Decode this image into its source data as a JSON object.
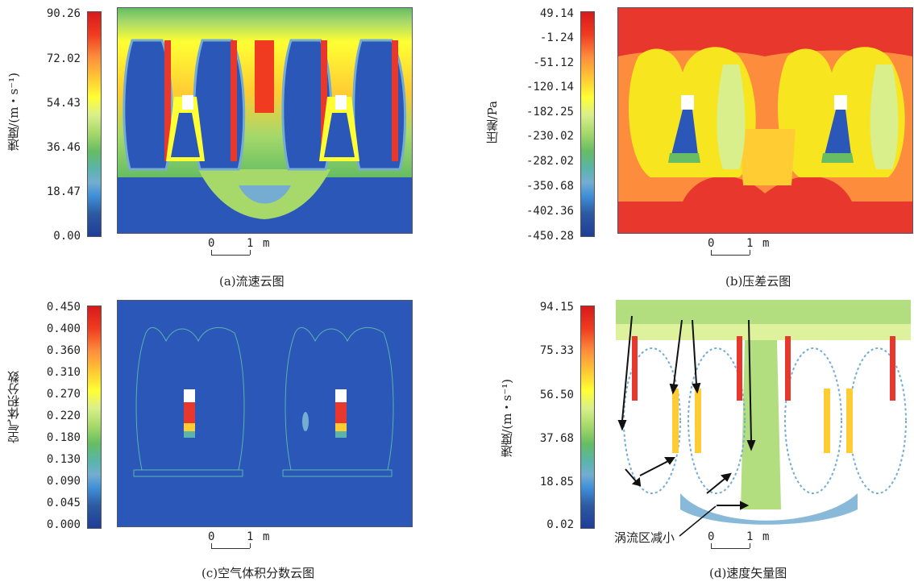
{
  "panels": {
    "a": {
      "caption": "(a)流速云图",
      "colorbar_title": "速度/(m・s⁻¹)",
      "colorbar_ticks": [
        "90.26",
        "72.02",
        "54.43",
        "36.46",
        "18.47",
        "0.00"
      ],
      "scale_zero": "0",
      "scale_one": "1",
      "scale_unit": "m"
    },
    "b": {
      "caption": "(b)压差云图",
      "colorbar_title": "压差/Pa",
      "colorbar_ticks": [
        "49.14",
        "-1.24",
        "-51.12",
        "-120.14",
        "-182.25",
        "-230.02",
        "-282.02",
        "-350.68",
        "-402.36",
        "-450.28"
      ],
      "scale_zero": "0",
      "scale_one": "1",
      "scale_unit": "m"
    },
    "c": {
      "caption": "(c)空气体积分数云图",
      "colorbar_title": "空气体积分数",
      "colorbar_ticks": [
        "0.450",
        "0.400",
        "0.360",
        "0.310",
        "0.270",
        "0.220",
        "0.180",
        "0.130",
        "0.090",
        "0.045",
        "0.000"
      ],
      "scale_zero": "0",
      "scale_one": "1",
      "scale_unit": "m"
    },
    "d": {
      "caption": "(d)速度矢量图",
      "colorbar_title": "速度/(m・s⁻¹)",
      "colorbar_ticks": [
        "94.15",
        "75.33",
        "56.50",
        "37.68",
        "18.85",
        "0.02"
      ],
      "annotation": "涡流区减小",
      "scale_zero": "0",
      "scale_one": "1",
      "scale_unit": "m"
    }
  },
  "colors": {
    "jet": [
      "#d7191c",
      "#f03b20",
      "#fd8d3c",
      "#fecc5c",
      "#ffff33",
      "#d9ef8b",
      "#a6d96a",
      "#66bd63",
      "#5ab4ac",
      "#74add1",
      "#4575b4",
      "#2c5aa0",
      "#1f3d99"
    ],
    "field_blue": "#2a57b8",
    "field_red": "#e8372c",
    "field_yellow": "#f6e51f"
  }
}
